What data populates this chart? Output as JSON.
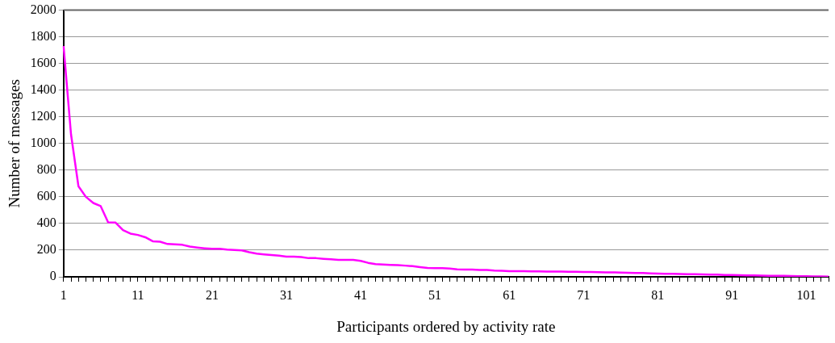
{
  "chart_data": {
    "type": "line",
    "xlabel": "Participants ordered by activity rate",
    "ylabel": "Number of messages",
    "categories": [
      "1",
      null,
      null,
      null,
      null,
      null,
      null,
      null,
      null,
      null,
      "11",
      null,
      null,
      null,
      null,
      null,
      null,
      null,
      null,
      null,
      "21",
      null,
      null,
      null,
      null,
      null,
      null,
      null,
      null,
      null,
      "31",
      null,
      null,
      null,
      null,
      null,
      null,
      null,
      null,
      null,
      "41",
      null,
      null,
      null,
      null,
      null,
      null,
      null,
      null,
      null,
      "51",
      null,
      null,
      null,
      null,
      null,
      null,
      null,
      null,
      null,
      "61",
      null,
      null,
      null,
      null,
      null,
      null,
      null,
      null,
      null,
      "71",
      null,
      null,
      null,
      null,
      null,
      null,
      null,
      null,
      null,
      "81",
      null,
      null,
      null,
      null,
      null,
      null,
      null,
      null,
      null,
      "91",
      null,
      null,
      null,
      null,
      null,
      null,
      null,
      null,
      null,
      "101",
      null,
      null,
      null
    ],
    "series": [
      {
        "color": "#ff00ff",
        "values": [
          1730,
          1070,
          680,
          600,
          554,
          530,
          409,
          407,
          350,
          324,
          314,
          297,
          267,
          263,
          246,
          244,
          240,
          227,
          220,
          214,
          210,
          211,
          204,
          202,
          198,
          185,
          174,
          168,
          163,
          159,
          151,
          151,
          148,
          140,
          140,
          135,
          131,
          127,
          127,
          127,
          120,
          105,
          95,
          92,
          90,
          88,
          84,
          80,
          73,
          67,
          65,
          65,
          62,
          56,
          54,
          54,
          52,
          52,
          47,
          45,
          43,
          42,
          42,
          41,
          41,
          40,
          39,
          39,
          38,
          38,
          37,
          36,
          35,
          34,
          33,
          32,
          31,
          29,
          28,
          26,
          24,
          23,
          22,
          21,
          20,
          19,
          18,
          17,
          16,
          14,
          13,
          12,
          11,
          10,
          9,
          8,
          8,
          7,
          6,
          5,
          4,
          3,
          3,
          2
        ]
      }
    ],
    "ylim": [
      0,
      2000
    ],
    "yticks": [
      0,
      200,
      400,
      600,
      800,
      1000,
      1200,
      1400,
      1600,
      1800,
      2000
    ],
    "grid": "y",
    "legend": false,
    "marker": "none",
    "line_style": "solid"
  }
}
